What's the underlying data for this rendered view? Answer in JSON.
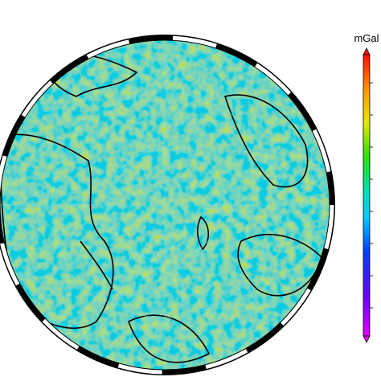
{
  "colorbar": {
    "label": "mGal"
  }
}
